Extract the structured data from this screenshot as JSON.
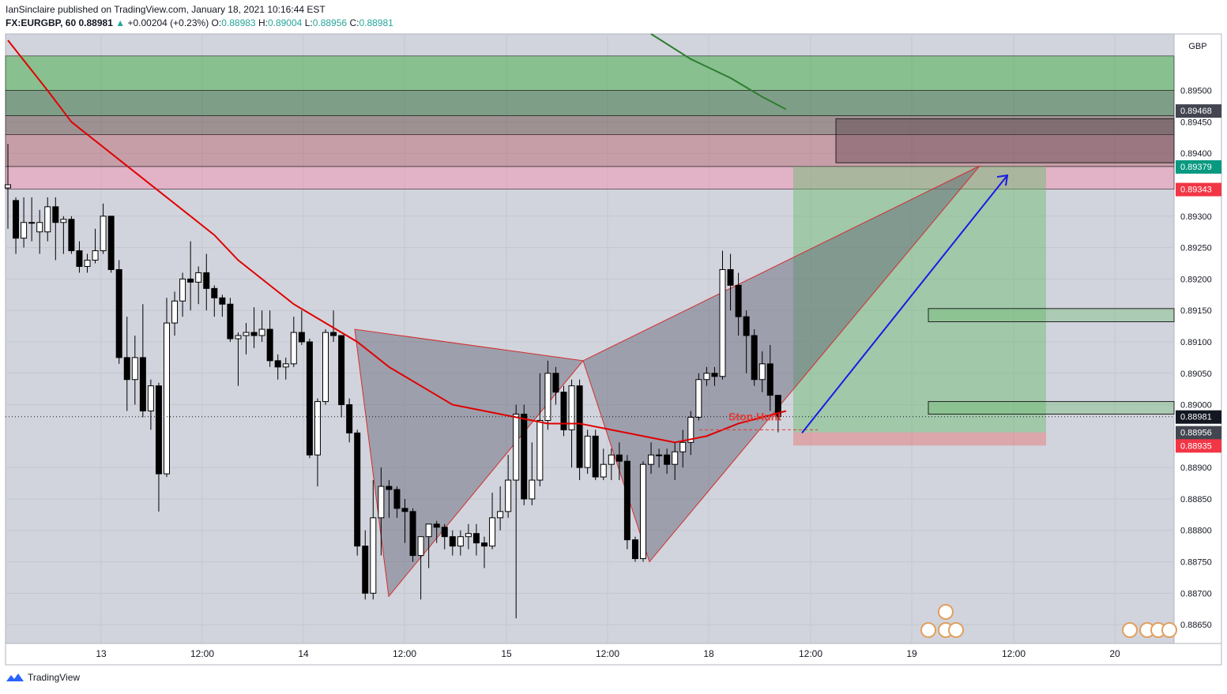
{
  "header": {
    "line1": "IanSinclaire published on TradingView.com, January 18, 2021 10:16:44 EST",
    "symbol": "FX:EURGBP, 60",
    "last": "0.88981",
    "change": "+0.00204 (+0.23%)",
    "o_label": "O:",
    "o": "0.88983",
    "h_label": "H:",
    "h": "0.89004",
    "l_label": "L:",
    "l": "0.88956",
    "c_label": "C:",
    "c": "0.88981"
  },
  "footer": {
    "brand": "TradingView"
  },
  "chart_data": {
    "type": "candlestick",
    "currency": "GBP",
    "y_range": [
      0.8862,
      0.8959
    ],
    "y_ticks": [
      "0.89500",
      "0.89450",
      "0.89400",
      "0.89300",
      "0.89250",
      "0.89200",
      "0.89150",
      "0.89100",
      "0.89050",
      "0.89000",
      "0.88900",
      "0.88850",
      "0.88800",
      "0.88750",
      "0.88700",
      "0.88650"
    ],
    "x_ticks": [
      "13",
      "12:00",
      "14",
      "12:00",
      "15",
      "12:00",
      "18",
      "12:00",
      "19",
      "12:00",
      "20"
    ],
    "price_badges": [
      {
        "text": "0.89468",
        "value": 0.89468,
        "color": "#434651"
      },
      {
        "text": "0.89379",
        "value": 0.89379,
        "color": "#089981"
      },
      {
        "text": "0.89343",
        "value": 0.89343,
        "color": "#f23645"
      },
      {
        "text": "0.88981",
        "value": 0.88981,
        "color": "#131722"
      },
      {
        "text": "0.88956",
        "value": 0.88956,
        "color": "#434651"
      },
      {
        "text": "0.88935",
        "value": 0.88935,
        "color": "#f23645"
      }
    ],
    "annotation": "Stop Hunt",
    "candles": [
      [
        0.89345,
        0.8935,
        0.89415,
        0.8928
      ],
      [
        0.89325,
        0.89265,
        0.8933,
        0.8924
      ],
      [
        0.89265,
        0.8929,
        0.8933,
        0.8925
      ],
      [
        0.8929,
        0.8929,
        0.8933,
        0.8926
      ],
      [
        0.89275,
        0.8929,
        0.8931,
        0.8924
      ],
      [
        0.89275,
        0.89315,
        0.8933,
        0.8926
      ],
      [
        0.89315,
        0.8929,
        0.8933,
        0.8923
      ],
      [
        0.8929,
        0.89295,
        0.893,
        0.8924
      ],
      [
        0.89295,
        0.89245,
        0.893,
        0.8924
      ],
      [
        0.89245,
        0.8922,
        0.8926,
        0.8921
      ],
      [
        0.8922,
        0.8923,
        0.8924,
        0.8921
      ],
      [
        0.8923,
        0.89245,
        0.8928,
        0.89225
      ],
      [
        0.89245,
        0.893,
        0.8932,
        0.8924
      ],
      [
        0.893,
        0.89215,
        0.893,
        0.8921
      ],
      [
        0.89215,
        0.89075,
        0.8923,
        0.89065
      ],
      [
        0.89075,
        0.8904,
        0.8914,
        0.8899
      ],
      [
        0.8904,
        0.89075,
        0.8911,
        0.89
      ],
      [
        0.89075,
        0.8899,
        0.8916,
        0.8898
      ],
      [
        0.8899,
        0.8903,
        0.8904,
        0.8896
      ],
      [
        0.8903,
        0.8889,
        0.89035,
        0.8883
      ],
      [
        0.8889,
        0.8913,
        0.8917,
        0.88885
      ],
      [
        0.8913,
        0.89165,
        0.8918,
        0.8911
      ],
      [
        0.89165,
        0.892,
        0.8921,
        0.8914
      ],
      [
        0.892,
        0.89195,
        0.8926,
        0.8915
      ],
      [
        0.89195,
        0.8921,
        0.8922,
        0.8916
      ],
      [
        0.8921,
        0.89185,
        0.8924,
        0.8915
      ],
      [
        0.89185,
        0.8917,
        0.8919,
        0.8914
      ],
      [
        0.8917,
        0.8916,
        0.89175,
        0.8914
      ],
      [
        0.8916,
        0.89105,
        0.8917,
        0.891
      ],
      [
        0.89105,
        0.8911,
        0.89115,
        0.8903
      ],
      [
        0.8911,
        0.89115,
        0.8913,
        0.8908
      ],
      [
        0.89115,
        0.8911,
        0.89155,
        0.8909
      ],
      [
        0.8911,
        0.8912,
        0.8915,
        0.891
      ],
      [
        0.8912,
        0.8907,
        0.8915,
        0.8906
      ],
      [
        0.8907,
        0.8906,
        0.8908,
        0.8904
      ],
      [
        0.8906,
        0.89065,
        0.89075,
        0.8904
      ],
      [
        0.89065,
        0.89115,
        0.8914,
        0.8906
      ],
      [
        0.89115,
        0.891,
        0.8915,
        0.89095
      ],
      [
        0.891,
        0.8892,
        0.89105,
        0.88915
      ],
      [
        0.8892,
        0.89005,
        0.8901,
        0.8887
      ],
      [
        0.89005,
        0.89115,
        0.8912,
        0.89
      ],
      [
        0.89115,
        0.8911,
        0.8915,
        0.891
      ],
      [
        0.8911,
        0.89,
        0.8911,
        0.8898
      ],
      [
        0.89,
        0.88955,
        0.8901,
        0.8894
      ],
      [
        0.88955,
        0.88775,
        0.8896,
        0.8876
      ],
      [
        0.88775,
        0.887,
        0.888,
        0.8869
      ],
      [
        0.887,
        0.8882,
        0.8888,
        0.8869
      ],
      [
        0.8882,
        0.8887,
        0.889,
        0.8876
      ],
      [
        0.8887,
        0.88865,
        0.8888,
        0.8882
      ],
      [
        0.88865,
        0.88835,
        0.8887,
        0.8882
      ],
      [
        0.88835,
        0.8883,
        0.8885,
        0.8878
      ],
      [
        0.8883,
        0.8876,
        0.88835,
        0.8875
      ],
      [
        0.8876,
        0.8879,
        0.8879,
        0.8869
      ],
      [
        0.8879,
        0.8881,
        0.8881,
        0.8874
      ],
      [
        0.8881,
        0.88805,
        0.88815,
        0.8878
      ],
      [
        0.88805,
        0.8879,
        0.8881,
        0.8877
      ],
      [
        0.8879,
        0.88775,
        0.888,
        0.8876
      ],
      [
        0.88775,
        0.8879,
        0.888,
        0.8876
      ],
      [
        0.8879,
        0.88795,
        0.8881,
        0.8877
      ],
      [
        0.88795,
        0.8878,
        0.8881,
        0.8876
      ],
      [
        0.8878,
        0.88775,
        0.8879,
        0.8874
      ],
      [
        0.88775,
        0.8882,
        0.8886,
        0.8877
      ],
      [
        0.8882,
        0.8883,
        0.8887,
        0.888
      ],
      [
        0.8883,
        0.8888,
        0.8892,
        0.8882
      ],
      [
        0.8888,
        0.88985,
        0.89,
        0.8866
      ],
      [
        0.88985,
        0.8885,
        0.89,
        0.8884
      ],
      [
        0.8885,
        0.8888,
        0.8894,
        0.8884
      ],
      [
        0.8888,
        0.88975,
        0.8905,
        0.8887
      ],
      [
        0.88975,
        0.8905,
        0.8907,
        0.8896
      ],
      [
        0.8905,
        0.8902,
        0.8906,
        0.89
      ],
      [
        0.8902,
        0.8896,
        0.8903,
        0.8895
      ],
      [
        0.8896,
        0.8903,
        0.8904,
        0.889
      ],
      [
        0.8903,
        0.889,
        0.8904,
        0.8888
      ],
      [
        0.889,
        0.8895,
        0.8896,
        0.8889
      ],
      [
        0.8895,
        0.88885,
        0.8896,
        0.8888
      ],
      [
        0.88885,
        0.88905,
        0.8893,
        0.8888
      ],
      [
        0.88905,
        0.8892,
        0.8893,
        0.8888
      ],
      [
        0.8892,
        0.8891,
        0.8894,
        0.8888
      ],
      [
        0.8891,
        0.88785,
        0.8892,
        0.8877
      ],
      [
        0.88785,
        0.88755,
        0.8879,
        0.8875
      ],
      [
        0.88755,
        0.88905,
        0.8891,
        0.8875
      ],
      [
        0.88905,
        0.8892,
        0.8894,
        0.8889
      ],
      [
        0.8892,
        0.8892,
        0.8893,
        0.889
      ],
      [
        0.8892,
        0.88905,
        0.8893,
        0.8889
      ],
      [
        0.88905,
        0.88925,
        0.8894,
        0.8888
      ],
      [
        0.88925,
        0.8894,
        0.8896,
        0.889
      ],
      [
        0.8894,
        0.8898,
        0.8899,
        0.8892
      ],
      [
        0.8898,
        0.8904,
        0.8905,
        0.88975
      ],
      [
        0.8904,
        0.8905,
        0.8906,
        0.8903
      ],
      [
        0.8905,
        0.89045,
        0.8906,
        0.8903
      ],
      [
        0.89045,
        0.89215,
        0.89245,
        0.8904
      ],
      [
        0.89215,
        0.8919,
        0.8924,
        0.8915
      ],
      [
        0.8919,
        0.8914,
        0.8921,
        0.8911
      ],
      [
        0.8914,
        0.8911,
        0.8915,
        0.8905
      ],
      [
        0.8911,
        0.8904,
        0.8912,
        0.8903
      ],
      [
        0.8904,
        0.89065,
        0.89085,
        0.8902
      ],
      [
        0.89065,
        0.89015,
        0.89095,
        0.8899
      ],
      [
        0.89015,
        0.88981,
        0.89004,
        0.88956
      ]
    ],
    "ema_red": [
      [
        0,
        0.8958
      ],
      [
        5,
        0.895
      ],
      [
        8,
        0.8945
      ],
      [
        11,
        0.8942
      ],
      [
        14,
        0.8939
      ],
      [
        17,
        0.8936
      ],
      [
        20,
        0.8933
      ],
      [
        23,
        0.893
      ],
      [
        26,
        0.8927
      ],
      [
        29,
        0.8923
      ],
      [
        33,
        0.8919
      ],
      [
        36,
        0.8916
      ],
      [
        40,
        0.8913
      ],
      [
        44,
        0.891
      ],
      [
        48,
        0.8906
      ],
      [
        52,
        0.8903
      ],
      [
        56,
        0.89
      ],
      [
        60,
        0.8899
      ],
      [
        64,
        0.8898
      ],
      [
        68,
        0.8897
      ],
      [
        72,
        0.8897
      ],
      [
        76,
        0.8896
      ],
      [
        80,
        0.8895
      ],
      [
        84,
        0.8894
      ],
      [
        88,
        0.8895
      ],
      [
        92,
        0.8897
      ],
      [
        95,
        0.8898
      ],
      [
        98,
        0.8899
      ]
    ],
    "ema_green": [
      [
        81,
        0.8959
      ],
      [
        86,
        0.8955
      ],
      [
        91,
        0.8952
      ],
      [
        95,
        0.8949
      ],
      [
        98,
        0.8947
      ]
    ],
    "zones": [
      {
        "from": 0.89555,
        "to": 0.895,
        "fill": "#4caf50",
        "opacity": 0.55
      },
      {
        "from": 0.895,
        "to": 0.8946,
        "fill": "#1b5e20",
        "opacity": 0.45
      },
      {
        "from": 0.8946,
        "to": 0.8943,
        "fill": "#5d4037",
        "opacity": 0.45
      },
      {
        "from": 0.8943,
        "to": 0.89379,
        "fill": "#b23a48",
        "opacity": 0.35
      },
      {
        "from": 0.89379,
        "to": 0.89343,
        "fill": "#f48fb1",
        "opacity": 0.5
      }
    ],
    "harmonic": [
      [
        85,
        0.8912
      ],
      [
        97,
        0.8869
      ],
      [
        144,
        0.8906
      ],
      [
        187,
        0.8875
      ],
      [
        235,
        0.8938
      ],
      [
        190,
        0.8903
      ]
    ],
    "target_arrow": {
      "from": [
        1015,
        0.88955
      ],
      "to": [
        1275,
        0.89365
      ]
    }
  }
}
